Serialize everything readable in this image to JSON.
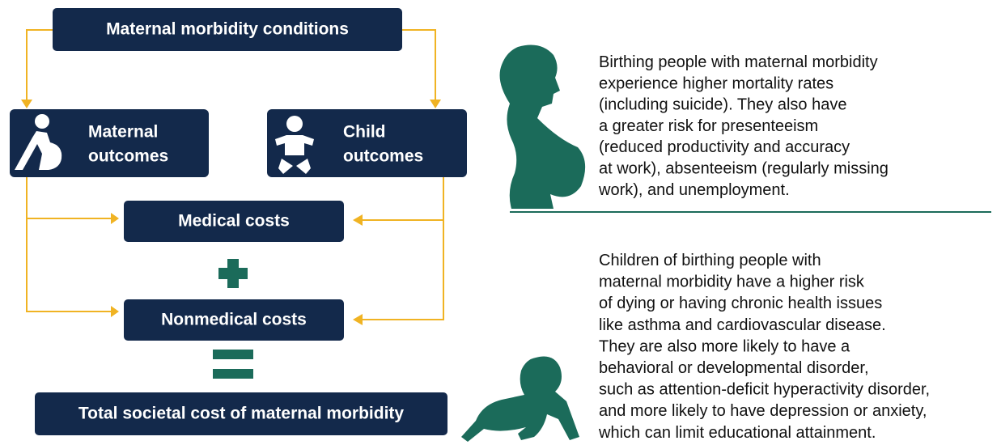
{
  "nodes": [
    {
      "label": "Maternal morbidity conditions"
    },
    {
      "label": [
        "Maternal",
        "outcomes"
      ]
    },
    {
      "label": [
        "Child",
        "outcomes"
      ]
    },
    {
      "label": "Medical costs"
    },
    {
      "label": "Nonmedical costs"
    },
    {
      "label": "Total societal cost of maternal morbidity"
    }
  ],
  "paragraphs": [
    {
      "lines": [
        "Birthing people with maternal morbidity",
        "experience higher mortality rates",
        "(including suicide). They also have",
        "a greater risk for presenteeism",
        "(reduced productivity and accuracy",
        "at work), absenteeism (regularly missing",
        "work), and unemployment."
      ]
    },
    {
      "lines": [
        "Children of birthing people with",
        "maternal morbidity have a higher risk",
        "of dying or having chronic health issues",
        "like asthma and cardiovascular disease.",
        "They are also more likely to have a",
        "behavioral or developmental disorder,",
        "such as attention-deficit hyperactivity disorder,",
        "and more likely to have depression or anxiety,",
        "which can limit educational attainment."
      ]
    }
  ]
}
